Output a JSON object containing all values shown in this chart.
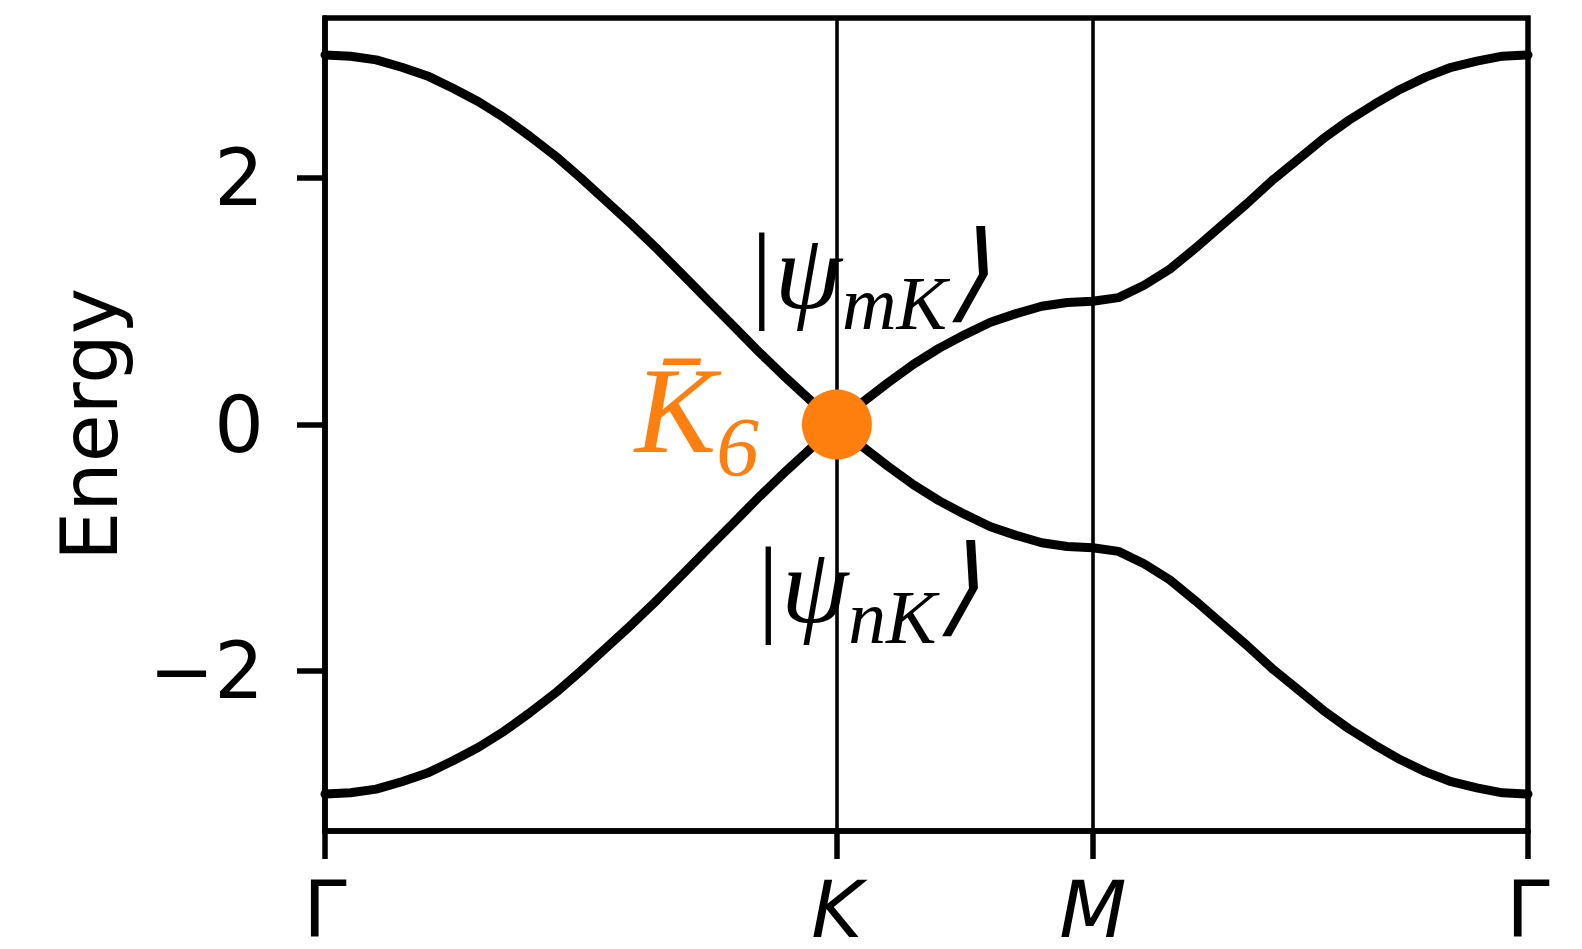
{
  "chart_data": {
    "type": "line",
    "ylabel": "Energy",
    "categories": [
      "Γ",
      null,
      null,
      null,
      null,
      null,
      null,
      null,
      null,
      null,
      null,
      null,
      null,
      null,
      null,
      null,
      null,
      null,
      null,
      null,
      "K",
      null,
      null,
      null,
      null,
      null,
      null,
      null,
      null,
      null,
      "M",
      null,
      null,
      null,
      null,
      null,
      null,
      null,
      null,
      null,
      null,
      null,
      null,
      null,
      null,
      null,
      null,
      "Γ"
    ],
    "ylim": [
      -3.3,
      3.3
    ],
    "yticks": [
      {
        "value": -2,
        "label": "−2"
      },
      0,
      2
    ],
    "grid": "x",
    "legend": false,
    "marker": "none",
    "line_style": "solid",
    "annotations": [
      "|ψ$_{mK}$⟩",
      "|ψ$_{nK}$⟩"
    ],
    "series": [
      {
        "color": "#000000",
        "values": [
          3,
          2.99,
          2.96,
          2.9,
          2.83,
          2.73,
          2.62,
          2.49,
          2.34,
          2.18,
          2,
          1.81,
          1.62,
          1.42,
          1.21,
          1,
          0.79,
          0.58,
          0.38,
          0.19,
          null,
          -0.18,
          -0.34,
          -0.49,
          -0.62,
          -0.73,
          -0.83,
          -0.9,
          -0.96,
          -0.99,
          -1,
          -1.03,
          -1.13,
          -1.26,
          -1.43,
          -1.61,
          -1.79,
          -1.98,
          -2.15,
          -2.32,
          -2.47,
          -2.6,
          -2.72,
          -2.82,
          -2.9,
          -2.95,
          -2.99,
          -3
        ]
      },
      {
        "color": "#000000",
        "values": [
          -3,
          -2.99,
          -2.96,
          -2.9,
          -2.83,
          -2.73,
          -2.62,
          -2.49,
          -2.34,
          -2.18,
          -2,
          -1.81,
          -1.62,
          -1.42,
          -1.21,
          -1,
          -0.79,
          -0.58,
          -0.38,
          -0.19,
          null,
          0.18,
          0.34,
          0.49,
          0.62,
          0.73,
          0.83,
          0.9,
          0.96,
          0.99,
          1,
          1.03,
          1.13,
          1.26,
          1.43,
          1.61,
          1.79,
          1.98,
          2.15,
          2.32,
          2.47,
          2.6,
          2.72,
          2.82,
          2.9,
          2.95,
          2.99,
          3
        ]
      },
      {
        "type": "scatter",
        "name": "K̄$_{6}$",
        "color": "#ff7f0e",
        "marker": "circle",
        "values": [
          null,
          null,
          null,
          null,
          null,
          null,
          null,
          null,
          null,
          null,
          null,
          null,
          null,
          null,
          null,
          null,
          null,
          null,
          null,
          null,
          0,
          null,
          null,
          null,
          null,
          null,
          null,
          null,
          null,
          null,
          null,
          null,
          null,
          null,
          null,
          null,
          null,
          null,
          null,
          null,
          null,
          null,
          null,
          null,
          null,
          null,
          null,
          null
        ]
      }
    ]
  }
}
